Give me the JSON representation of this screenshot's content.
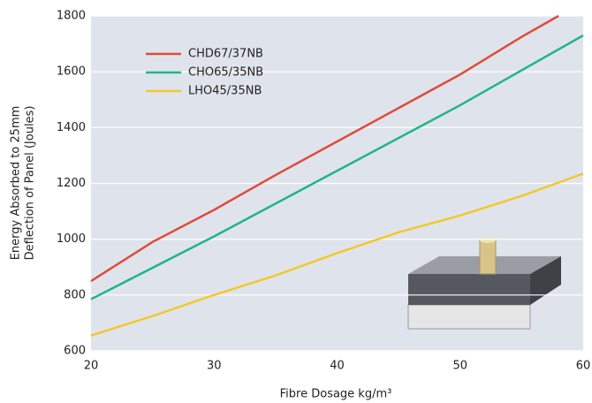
{
  "chart_data": {
    "type": "line",
    "x_label": "Fibre Dosage kg/m³",
    "y_label": [
      "Energy Absorbed to 25mm",
      "Deflection of Panel (Joules)"
    ],
    "xlim": [
      20,
      60
    ],
    "xticks": [
      20,
      30,
      40,
      50,
      60
    ],
    "ylim": [
      600,
      1800
    ],
    "yticks": [
      600,
      800,
      1000,
      1200,
      1400,
      1600,
      1800
    ],
    "grid": true,
    "legend": "upper left",
    "series": [
      {
        "name": "CHD67/37NB",
        "color": "#e04a3a",
        "x": [
          20,
          25,
          30,
          35,
          40,
          45,
          50,
          55,
          58
        ],
        "values": [
          850,
          990,
          1105,
          1230,
          1350,
          1470,
          1590,
          1725,
          1800
        ]
      },
      {
        "name": "CHO65/35NB",
        "color": "#20b48a",
        "x": [
          20,
          30,
          40,
          50,
          60
        ],
        "values": [
          785,
          1010,
          1245,
          1480,
          1730
        ]
      },
      {
        "name": "LHO45/35NB",
        "color": "#f2c92a",
        "x": [
          20,
          25,
          30,
          35,
          40,
          45,
          50,
          55,
          60
        ],
        "values": [
          655,
          725,
          800,
          870,
          950,
          1025,
          1085,
          1155,
          1235
        ]
      }
    ]
  }
}
